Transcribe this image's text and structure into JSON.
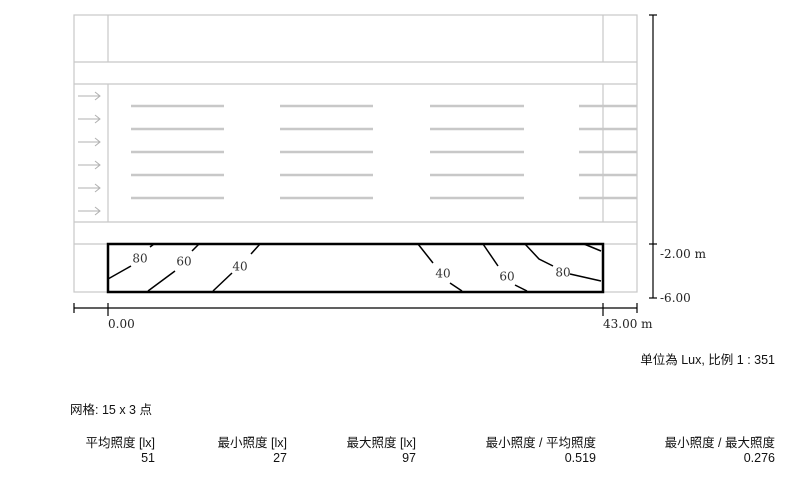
{
  "diagram": {
    "y_axis_labels": [
      "-2.00 m",
      "-6.00"
    ],
    "x_axis_labels": [
      "0.00",
      "43.00 m"
    ],
    "contours": [
      {
        "value": "80",
        "side": "left"
      },
      {
        "value": "60",
        "side": "left"
      },
      {
        "value": "40",
        "side": "left"
      },
      {
        "value": "40",
        "side": "right"
      },
      {
        "value": "60",
        "side": "right"
      },
      {
        "value": "80",
        "side": "right"
      }
    ],
    "colors": {
      "plan_lines": "#c8c8c8",
      "contour": "#000000",
      "calc_area": "#000000"
    }
  },
  "unit_scale_note": "单位為 Lux, 比例 1 : 351",
  "grid_note": "网格: 15 x 3 点",
  "results": {
    "headers": [
      "平均照度 [lx]",
      "最小照度 [lx]",
      "最大照度 [lx]",
      "最小照度 / 平均照度",
      "最小照度 / 最大照度"
    ],
    "values": [
      "51",
      "27",
      "97",
      "0.519",
      "0.276"
    ]
  }
}
